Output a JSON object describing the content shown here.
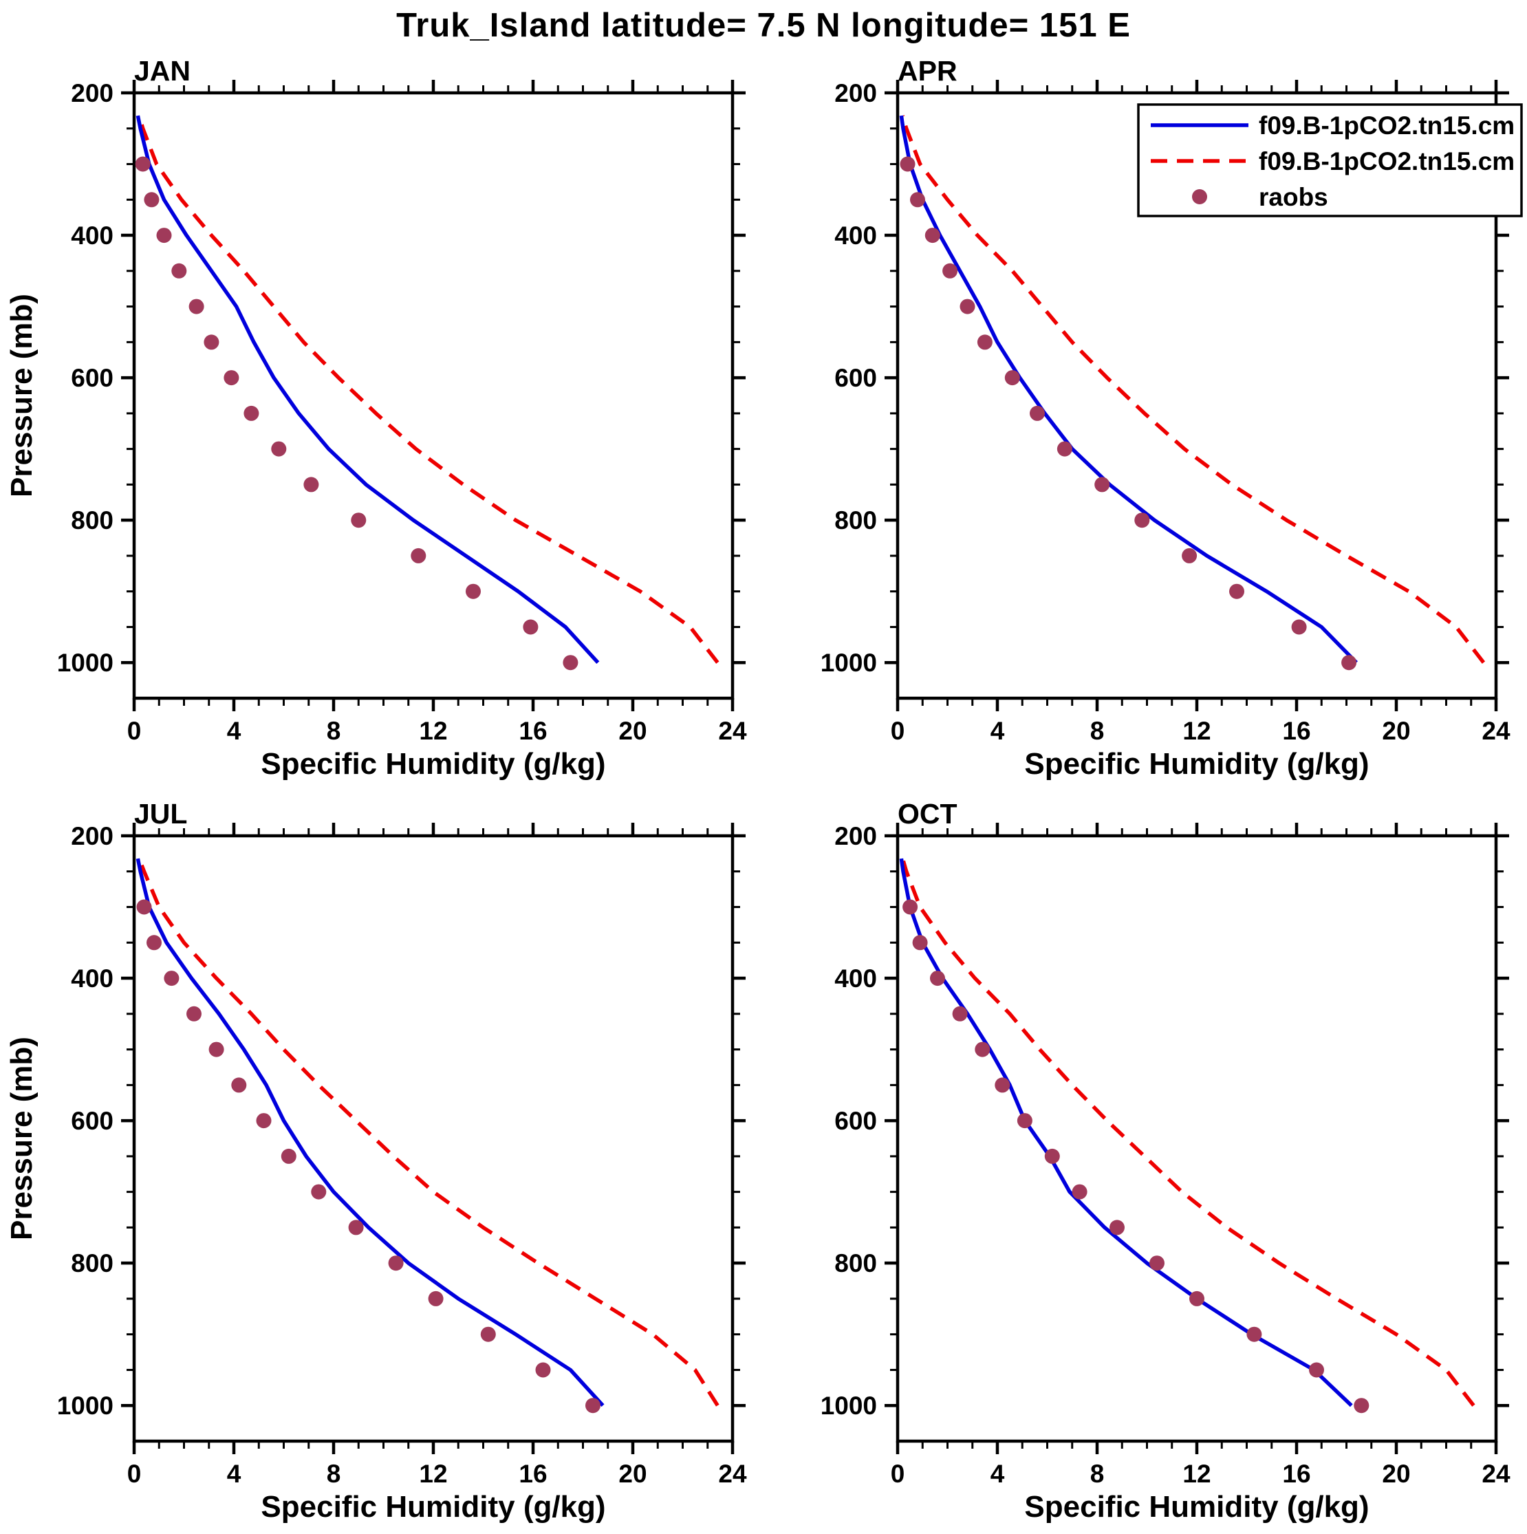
{
  "title": "Truk_Island  latitude= 7.5 N longitude= 151 E",
  "colors": {
    "blue": "#0000dd",
    "red": "#ee0000",
    "raobs": "#a03a5a",
    "frame": "#000000"
  },
  "legend": {
    "entries": [
      {
        "label": "f09.B-1pCO2.tn15.cm",
        "type": "line",
        "dash": false,
        "colorKey": "blue"
      },
      {
        "label": "f09.B-1pCO2.tn15.cm",
        "type": "line",
        "dash": true,
        "colorKey": "red"
      },
      {
        "label": "raobs",
        "type": "marker",
        "colorKey": "raobs"
      }
    ]
  },
  "chart_data": {
    "type": "line",
    "axes": {
      "xlabel": "Specific Humidity (g/kg)",
      "ylabel": "Pressure (mb)",
      "xlim": [
        0,
        24
      ],
      "ylim": [
        200,
        1050
      ],
      "xticks": [
        0,
        4,
        8,
        12,
        16,
        20,
        24
      ],
      "xminor_step": 1,
      "yticks": [
        200,
        400,
        600,
        800,
        1000
      ],
      "yminor_step": 50,
      "grid": false
    },
    "levels_model": [
      1000,
      950,
      900,
      850,
      800,
      750,
      700,
      650,
      600,
      550,
      500,
      450,
      400,
      350,
      300,
      250,
      232
    ],
    "levels_raobs": [
      1000,
      950,
      900,
      850,
      800,
      750,
      700,
      650,
      600,
      550,
      500,
      450,
      400,
      350,
      300
    ],
    "panels": [
      {
        "label": "JAN",
        "blue": [
          18.6,
          17.3,
          15.4,
          13.3,
          11.2,
          9.3,
          7.8,
          6.6,
          5.6,
          4.8,
          4.1,
          3.1,
          2.1,
          1.2,
          0.6,
          0.25,
          0.15
        ],
        "red": [
          23.4,
          22.3,
          20.3,
          17.8,
          15.3,
          13.2,
          11.3,
          9.7,
          8.2,
          6.8,
          5.6,
          4.4,
          3.1,
          1.9,
          0.9,
          0.35,
          0.2
        ],
        "raobs": [
          17.5,
          15.9,
          13.6,
          11.4,
          9.0,
          7.1,
          5.8,
          4.7,
          3.9,
          3.1,
          2.5,
          1.8,
          1.2,
          0.7,
          0.35
        ]
      },
      {
        "label": "APR",
        "blue": [
          18.4,
          17.0,
          14.8,
          12.4,
          10.3,
          8.5,
          7.0,
          5.9,
          4.9,
          4.0,
          3.3,
          2.5,
          1.7,
          1.0,
          0.5,
          0.22,
          0.15
        ],
        "red": [
          23.5,
          22.4,
          20.5,
          18.0,
          15.6,
          13.4,
          11.5,
          9.9,
          8.4,
          7.0,
          5.8,
          4.6,
          3.2,
          2.0,
          0.9,
          0.35,
          0.2
        ],
        "raobs": [
          18.1,
          16.1,
          13.6,
          11.7,
          9.8,
          8.2,
          6.7,
          5.6,
          4.6,
          3.5,
          2.8,
          2.1,
          1.4,
          0.8,
          0.4
        ]
      },
      {
        "label": "JUL",
        "blue": [
          18.8,
          17.5,
          15.3,
          13.0,
          11.0,
          9.4,
          8.0,
          6.9,
          6.0,
          5.3,
          4.4,
          3.4,
          2.3,
          1.3,
          0.6,
          0.25,
          0.15
        ],
        "red": [
          23.4,
          22.5,
          20.8,
          18.5,
          16.2,
          14.0,
          12.0,
          10.4,
          8.9,
          7.4,
          6.0,
          4.7,
          3.3,
          2.0,
          1.0,
          0.4,
          0.2
        ],
        "raobs": [
          18.4,
          16.4,
          14.2,
          12.1,
          10.5,
          8.9,
          7.4,
          6.2,
          5.2,
          4.2,
          3.3,
          2.4,
          1.5,
          0.8,
          0.4
        ]
      },
      {
        "label": "OCT",
        "blue": [
          18.2,
          16.7,
          14.2,
          12.0,
          10.0,
          8.3,
          6.9,
          6.1,
          5.1,
          4.5,
          3.7,
          2.8,
          1.8,
          1.0,
          0.5,
          0.22,
          0.15
        ],
        "red": [
          23.1,
          22.0,
          20.0,
          17.6,
          15.3,
          13.2,
          11.4,
          9.9,
          8.4,
          7.0,
          5.7,
          4.5,
          3.1,
          1.9,
          0.9,
          0.35,
          0.2
        ],
        "raobs": [
          18.6,
          16.8,
          14.3,
          12.0,
          10.4,
          8.8,
          7.3,
          6.2,
          5.1,
          4.2,
          3.4,
          2.5,
          1.6,
          0.9,
          0.5
        ]
      }
    ]
  }
}
